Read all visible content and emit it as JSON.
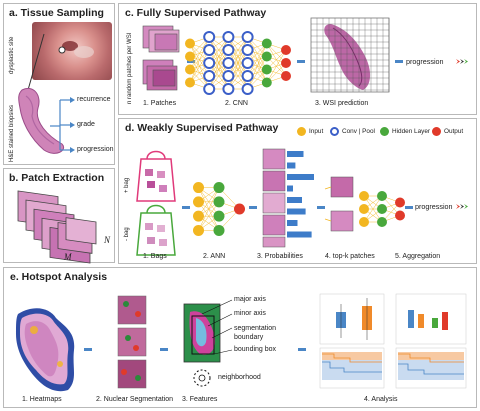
{
  "panel_a": {
    "title": "a. Tissue Sampling",
    "dysplastic_site": "dysplastic site",
    "he_biopsies": "H&E stained biopsies",
    "outcomes": [
      "recurrence",
      "grade",
      "progression"
    ]
  },
  "panel_b": {
    "title": "b. Patch Extraction",
    "n_label": "N",
    "m_label": "M"
  },
  "panel_c": {
    "title": "c. Fully Supervised Pathway",
    "vertical_label": "n random patches per WSI",
    "steps": [
      "1. Patches",
      "2. CNN",
      "3. WSI prediction"
    ],
    "output_label": "progression"
  },
  "panel_d": {
    "title": "d. Weakly Supervised Pathway",
    "legend": [
      {
        "label": "Input",
        "color": "#f2b621"
      },
      {
        "label": "Conv | Pool",
        "color": "#3b5fc8"
      },
      {
        "label": "Hidden Layer",
        "color": "#49a83c"
      },
      {
        "label": "Output",
        "color": "#e03a2a"
      }
    ],
    "bag_pos": "+ bag",
    "bag_neg": "- bag",
    "steps": [
      "1. Bags",
      "2. ANN",
      "3. Probabilities",
      "4. top-k patches",
      "5. Aggregation"
    ],
    "output_label": "progression",
    "bars": [
      0.55,
      0.28,
      0.9,
      0.2,
      0.5,
      0.62,
      0.35,
      0.82
    ]
  },
  "panel_e": {
    "title": "e. Hotspot Analysis",
    "steps": [
      "1. Heatmaps",
      "2. Nuclear Segmentation",
      "3. Features",
      "4. Analysis"
    ],
    "features": [
      "major axis",
      "minor axis",
      "segmentation boundary",
      "bounding box",
      "neighborhood"
    ]
  },
  "colors": {
    "yellow": "#f2b621",
    "blue": "#3b5fc8",
    "green": "#49a83c",
    "red": "#e03a2a",
    "arrow_blue": "#4a86c6",
    "tissue_pink": "#c8699e",
    "tissue_purple": "#8f3d88"
  }
}
